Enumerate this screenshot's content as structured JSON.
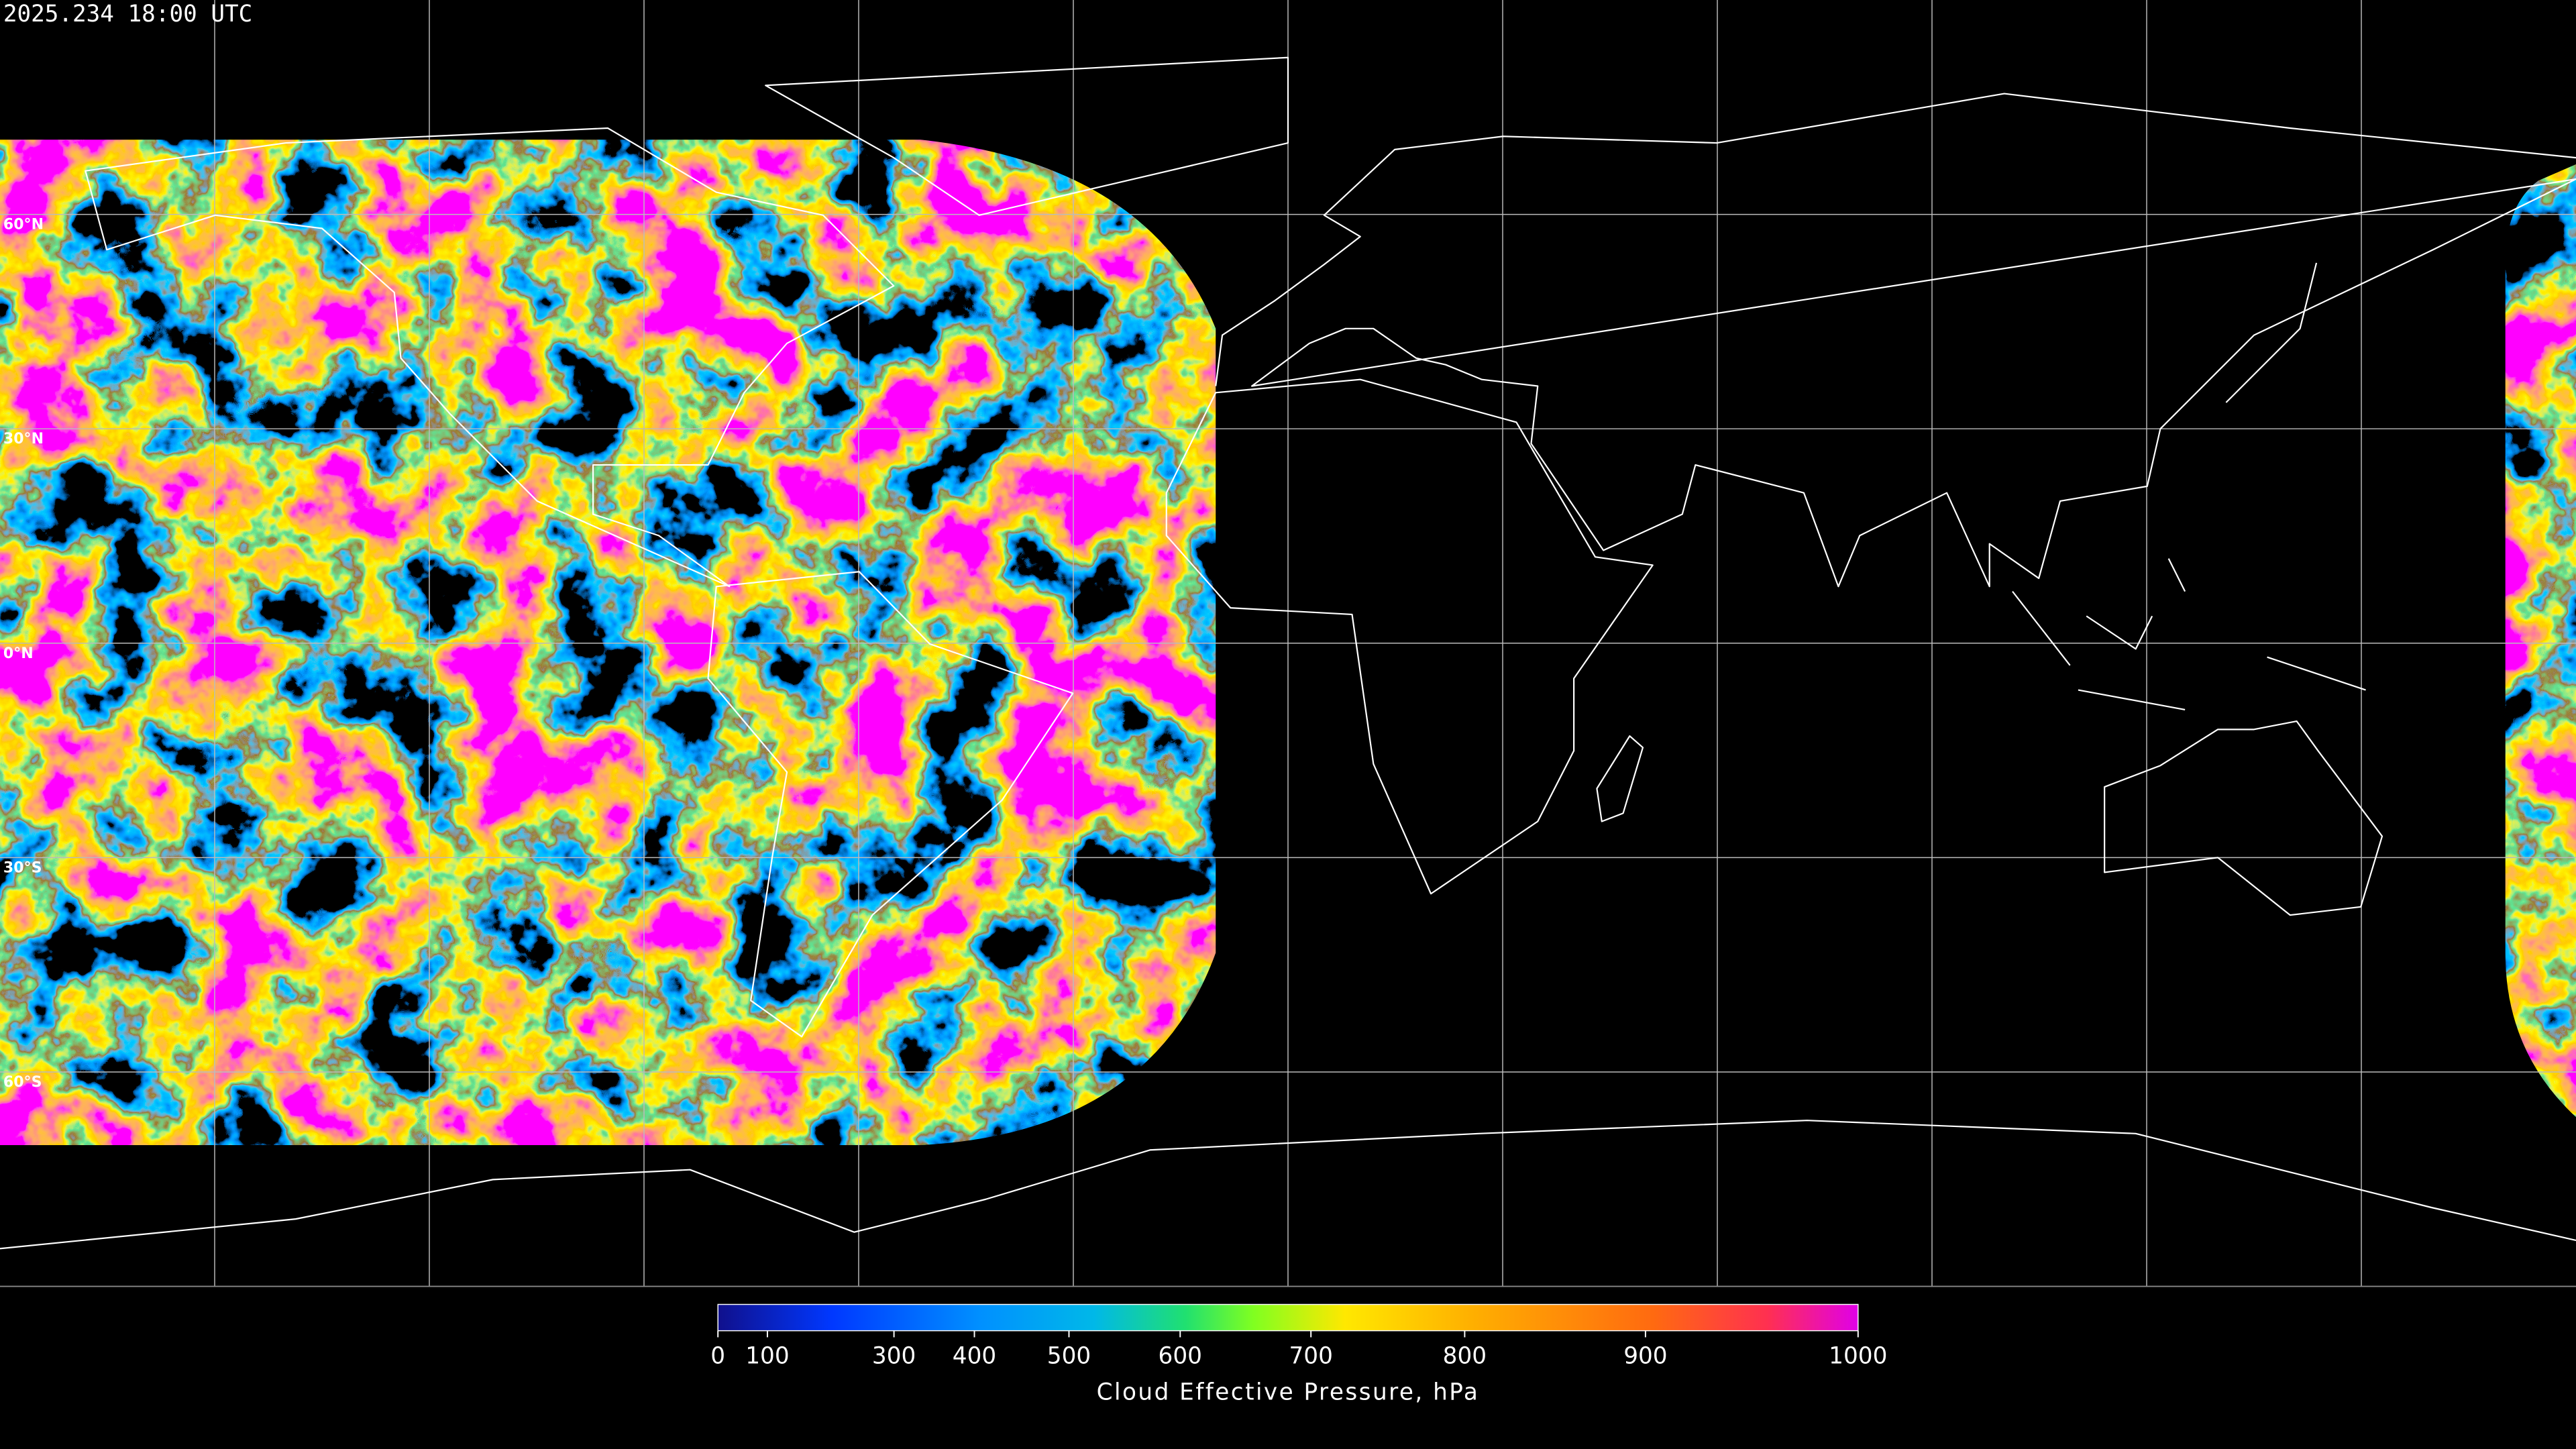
{
  "timestamp": "2025.234 18:00 UTC",
  "map": {
    "lat_labels": [
      {
        "value": 60,
        "label": "60°N"
      },
      {
        "value": 30,
        "label": "30°N"
      },
      {
        "value": 0,
        "label": "0°N"
      },
      {
        "value": -30,
        "label": "30°S"
      },
      {
        "value": -60,
        "label": "60°S"
      }
    ]
  },
  "colorbar": {
    "title": "Cloud Effective Pressure, hPa",
    "clim": [
      0,
      1000
    ],
    "ticks": [
      0,
      100,
      300,
      400,
      500,
      600,
      700,
      800,
      900,
      1000
    ]
  }
}
